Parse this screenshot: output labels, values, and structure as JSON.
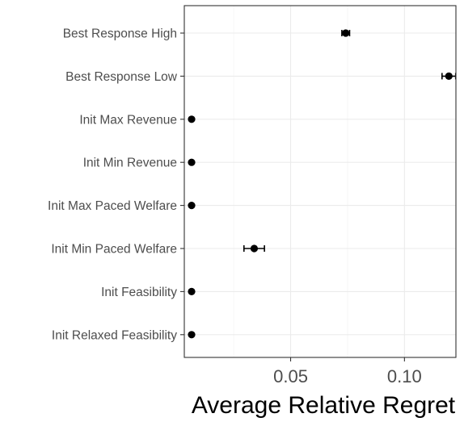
{
  "chart_data": {
    "type": "scatter",
    "xlabel": "Average Relative Regret",
    "ylabel": "",
    "title": "",
    "xlim": [
      0.0033,
      0.1226
    ],
    "x_ticks": [
      {
        "value": 0.05,
        "label": "0.05"
      },
      {
        "value": 0.1,
        "label": "0.10"
      }
    ],
    "x_minor_grid": [
      0.025,
      0.075,
      0.125
    ],
    "grid": true,
    "categories": [
      "Best Response High",
      "Best Response Low",
      "Init Max Revenue",
      "Init Min Revenue",
      "Init Max Paced Welfare",
      "Init Min Paced Welfare",
      "Init Feasibility",
      "Init Relaxed Feasibility"
    ],
    "points": [
      {
        "category": "Best Response High",
        "x": 0.0742,
        "err_low": 0.0725,
        "err_high": 0.0759
      },
      {
        "category": "Best Response Low",
        "x": 0.1195,
        "err_low": 0.1165,
        "err_high": 0.1225
      },
      {
        "category": "Init Max Revenue",
        "x": 0.0065,
        "err_low": 0.0065,
        "err_high": 0.0065
      },
      {
        "category": "Init Min Revenue",
        "x": 0.0065,
        "err_low": 0.0065,
        "err_high": 0.0065
      },
      {
        "category": "Init Max Paced Welfare",
        "x": 0.0065,
        "err_low": 0.0065,
        "err_high": 0.0065
      },
      {
        "category": "Init Min Paced Welfare",
        "x": 0.034,
        "err_low": 0.0295,
        "err_high": 0.0385
      },
      {
        "category": "Init Feasibility",
        "x": 0.0065,
        "err_low": 0.0065,
        "err_high": 0.0065
      },
      {
        "category": "Init Relaxed Feasibility",
        "x": 0.0065,
        "err_low": 0.0065,
        "err_high": 0.0065
      }
    ],
    "colors": {
      "point": "#000000",
      "panel_border": "#333333",
      "grid_major": "#ebebeb",
      "grid_minor": "#f4f4f4",
      "tick_label": "#4d4d4d",
      "axis_title": "#000000"
    }
  }
}
